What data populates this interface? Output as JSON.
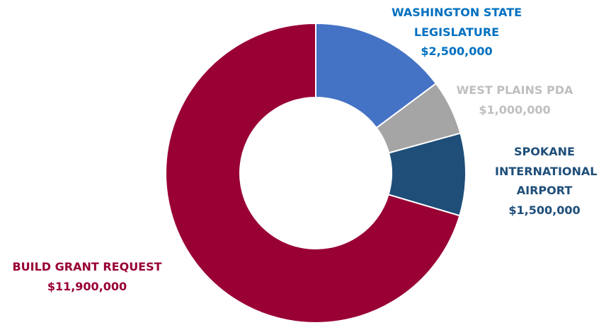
{
  "chart_data": {
    "type": "donut",
    "categories": [
      "WASHINGTON STATE LEGISLATURE",
      "WEST PLAINS PDA",
      "SPOKANE INTERNATIONAL AIRPORT",
      "BUILD GRANT REQUEST"
    ],
    "values": [
      2500000,
      1000000,
      1500000,
      11900000
    ],
    "value_labels": [
      "$2,500,000",
      "$1,000,000",
      "$1,500,000",
      "$11,900,000"
    ],
    "colors": [
      "#4472c4",
      "#a5a5a5",
      "#1f4e79",
      "#990033"
    ],
    "label_colors": [
      "#0070c0",
      "#bfbfbf",
      "#1f4e79",
      "#990033"
    ]
  }
}
